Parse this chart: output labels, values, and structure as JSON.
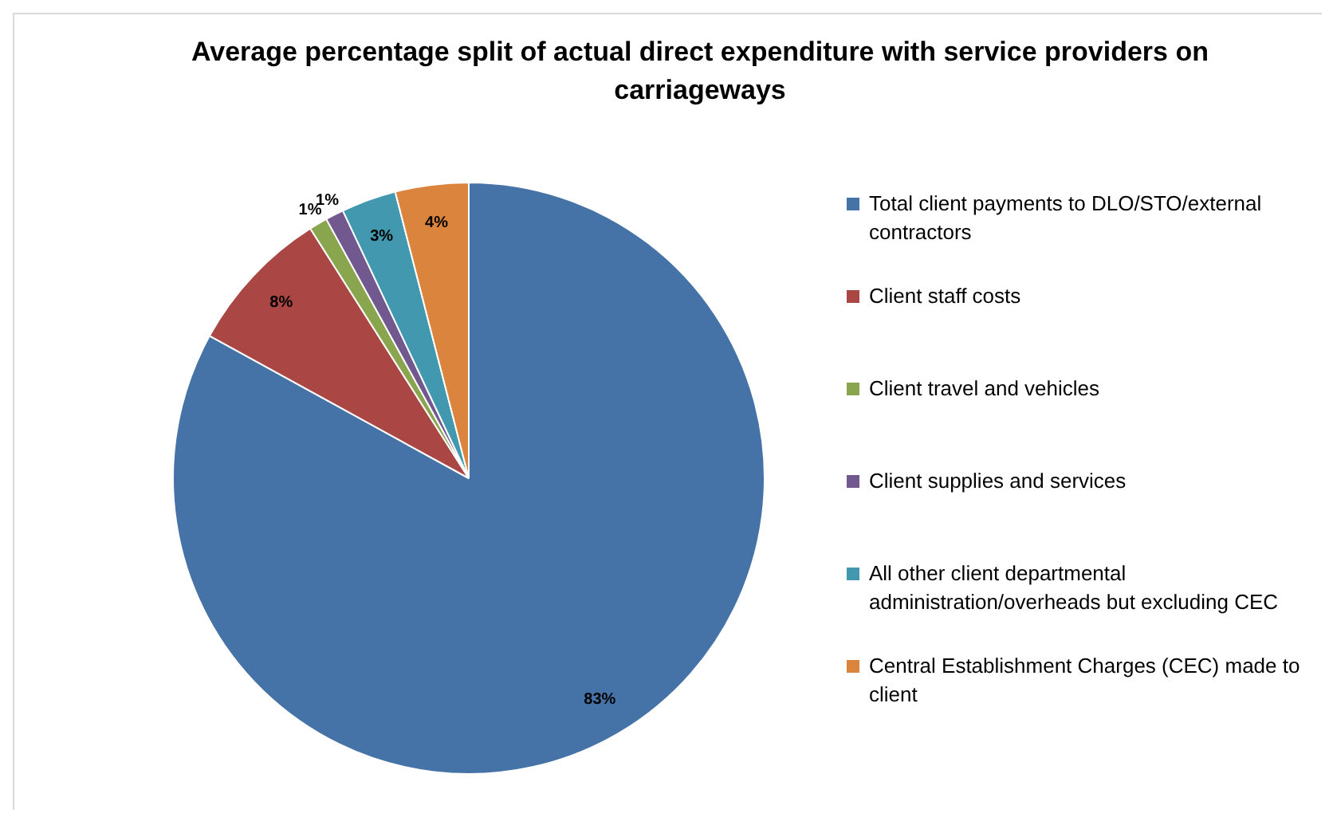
{
  "chart_data": {
    "type": "pie",
    "title": "Average percentage split of actual direct expenditure with service providers on carriageways",
    "categories": [
      "Total client payments to DLO/STO/external contractors",
      "Client staff costs",
      "Client travel and vehicles",
      "Client supplies and services",
      "All other client departmental administration/overheads but excluding CEC",
      "Central Establishment Charges (CEC) made to client"
    ],
    "values": [
      83,
      8,
      1,
      1,
      3,
      4
    ],
    "colors": [
      "#4572a7",
      "#aa4643",
      "#89a54e",
      "#71588f",
      "#4198af",
      "#db843d"
    ],
    "value_labels": [
      "83%",
      "8%",
      "1%",
      "1%",
      "3%",
      "4%"
    ],
    "legend": "right"
  }
}
